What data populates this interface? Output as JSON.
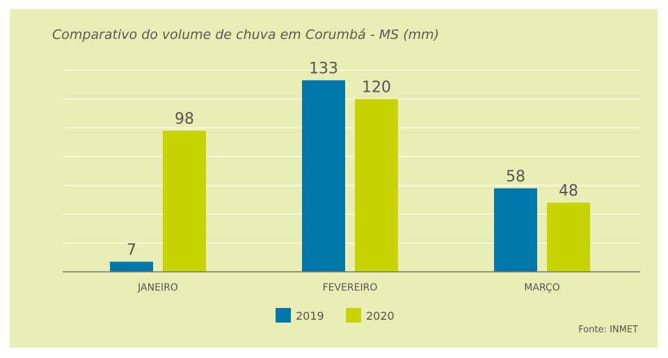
{
  "chart_data": {
    "type": "bar",
    "title": "Comparativo do volume de chuva em Corumbá - MS  (mm)",
    "categories": [
      "JANEIRO",
      "FEVEREIRO",
      "MARÇO"
    ],
    "series": [
      {
        "name": "2019",
        "values": [
          7,
          133,
          58
        ],
        "color": "#0077aa"
      },
      {
        "name": "2020",
        "values": [
          98,
          120,
          48
        ],
        "color": "#c8d400"
      }
    ],
    "ylim": [
      0,
      140
    ],
    "grid": true,
    "grid_step": 20,
    "legend": "bottom-center",
    "source": "Fonte: INMET",
    "background": "#e8edb3"
  }
}
